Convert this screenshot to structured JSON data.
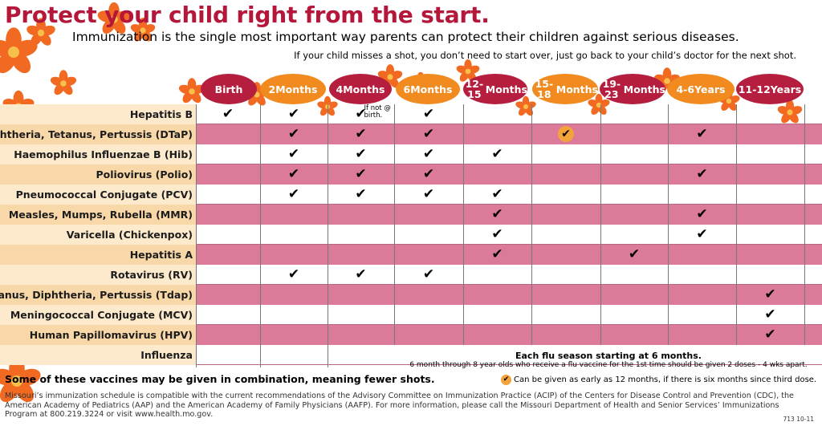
{
  "title": "Protect your child right from the start.",
  "subtitle": "Immunization is the single most important way parents can protect their children against serious diseases.",
  "note": "If your child misses a shot, you don’t need to start over, just go back to your child’s doctor for the next shot.",
  "age_headers": [
    {
      "line1": "Birth",
      "line2": "",
      "color": "red"
    },
    {
      "line1": "2",
      "line2": "Months",
      "color": "orange"
    },
    {
      "line1": "4",
      "line2": "Months",
      "color": "red"
    },
    {
      "line1": "6",
      "line2": "Months",
      "color": "orange"
    },
    {
      "line1": "12-15",
      "line2": "Months",
      "color": "red"
    },
    {
      "line1": "15-18",
      "line2": "Months",
      "color": "orange"
    },
    {
      "line1": "19-23",
      "line2": "Months",
      "color": "red"
    },
    {
      "line1": "4-6",
      "line2": "Years",
      "color": "orange"
    },
    {
      "line1": "11-12",
      "line2": "Years",
      "color": "red"
    }
  ],
  "vaccines": [
    {
      "name": "Hepatitis B",
      "checks": [
        0,
        1,
        2,
        3
      ],
      "early": [],
      "note_col": 2
    },
    {
      "name": "Diphtheria, Tetanus, Pertussis (DTaP)",
      "checks": [
        1,
        2,
        3,
        7
      ],
      "early": [
        5
      ]
    },
    {
      "name": "Haemophilus Influenzae B (Hib)",
      "checks": [
        1,
        2,
        3,
        4
      ],
      "early": []
    },
    {
      "name": "Poliovirus (Polio)",
      "checks": [
        1,
        2,
        3,
        7
      ],
      "early": []
    },
    {
      "name": "Pneumococcal Conjugate (PCV)",
      "checks": [
        1,
        2,
        3,
        4
      ],
      "early": []
    },
    {
      "name": "Measles, Mumps, Rubella (MMR)",
      "checks": [
        4,
        7
      ],
      "early": []
    },
    {
      "name": "Varicella (Chickenpox)",
      "checks": [
        4,
        7
      ],
      "early": []
    },
    {
      "name": "Hepatitis A",
      "checks": [
        4,
        6
      ],
      "early": []
    },
    {
      "name": "Rotavirus (RV)",
      "checks": [
        1,
        2,
        3
      ],
      "early": []
    },
    {
      "name": "Tetanus, Diphtheria, Pertussis (Tdap)",
      "checks": [
        8
      ],
      "early": []
    },
    {
      "name": "Meningococcal Conjugate (MCV)",
      "checks": [
        8
      ],
      "early": []
    },
    {
      "name": "Human Papillomavirus (HPV)",
      "checks": [
        8
      ],
      "early": []
    },
    {
      "name": "Influenza",
      "checks": [],
      "early": []
    }
  ],
  "hepb_note": "If not @ birth.",
  "check_symbol": "✔",
  "influenza_note_title": "Each flu season starting at 6 months.",
  "influenza_note_detail": "6 month through 8 year olds who receive a flu vaccine for the 1st time should be given 2 doses - 4 wks apart.",
  "combination_note": "Some of these vaccines may be given in combination, meaning fewer shots.",
  "legend_text": "Can be given as early as 12 months, if there is six months since third dose.",
  "footer": "Missouri’s immunization schedule is compatible with the current recommendations of the Advisory Committee on Immunization Practice (ACIP) of the Centers for Disease Control and Prevention (CDC), the American Academy of Pediatrics (AAP) and the American Academy of Family Physicians (AAFP).  For more information, please call the Missouri Department of Health and Senior Services’ Immunizations Program at 800.219.3224 or visit www.health.mo.gov.",
  "form_code": "713 10-11",
  "colors": {
    "title": "#b5173a",
    "header_red": "#b51e3e",
    "header_orange": "#f18a1f",
    "row_pink": "#dc7a9a",
    "label_peach": "#f8d7a8",
    "flower": "#f26a21"
  }
}
